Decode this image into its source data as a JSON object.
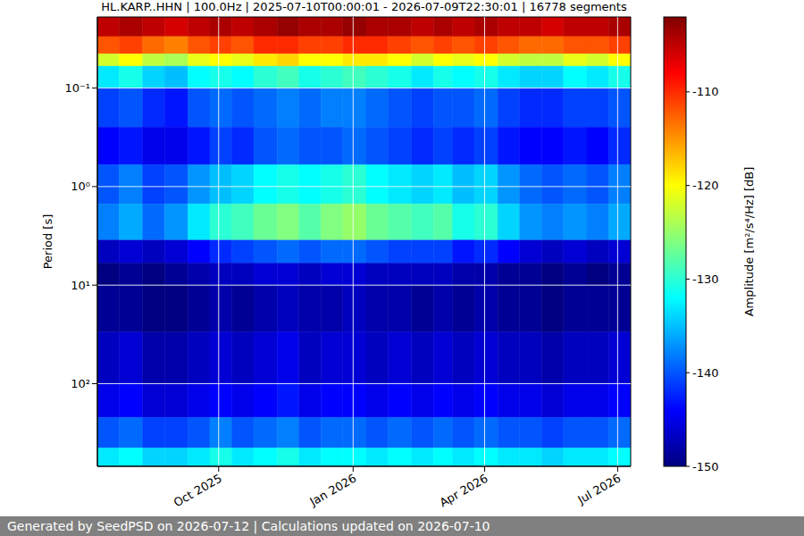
{
  "chart_data": {
    "type": "heatmap",
    "title": "HL.KARP..HHN | 100.0Hz | 2025-07-10T00:00:01 - 2026-07-09T22:30:01 | 16778 segments",
    "ylabel": "Period [s]",
    "footer": "Generated by SeedPSD on 2026-07-12 | Calculations updated on 2026-07-10",
    "log": "y",
    "grid": true,
    "color": "jet",
    "xlim": [
      "2025-07-10T00:00:01",
      "2026-07-09T22:30:01"
    ],
    "xticks": [
      {
        "value": "2025-10-01",
        "label": "Oct 2025"
      },
      {
        "value": "2026-01-01",
        "label": "Jan 2026"
      },
      {
        "value": "2026-04-01",
        "label": "Apr 2026"
      },
      {
        "value": "2026-07-01",
        "label": "Jul 2026"
      }
    ],
    "ylim": [
      0.019,
      690
    ],
    "yticks": [
      {
        "value": 0.1,
        "label": "10⁻¹"
      },
      {
        "value": 1,
        "label": "10⁰"
      },
      {
        "value": 10,
        "label": "10¹"
      },
      {
        "value": 100,
        "label": "10²"
      }
    ],
    "cells": {
      "x_edges": [
        "2025-07-10T00:00:01",
        "2025-07-25",
        "2025-08-10",
        "2025-08-25",
        "2025-09-10",
        "2025-09-25",
        "2025-10-10",
        "2025-10-25",
        "2025-11-10",
        "2025-11-25",
        "2025-12-10",
        "2025-12-25",
        "2026-01-10",
        "2026-01-25",
        "2026-02-10",
        "2026-02-25",
        "2026-03-10",
        "2026-03-25",
        "2026-04-10",
        "2026-04-25",
        "2026-05-10",
        "2026-05-25",
        "2026-06-10",
        "2026-06-25",
        "2026-07-09T22:30:01"
      ],
      "y_edges": [
        0.019,
        0.03,
        0.045,
        0.06,
        0.1,
        0.25,
        0.6,
        1.5,
        3.5,
        6,
        10,
        30,
        100,
        220,
        450,
        690
      ],
      "values": [
        [
          -105,
          -104,
          -105,
          -106,
          -105,
          -104,
          -105,
          -104,
          -103,
          -104,
          -104,
          -103,
          -104,
          -104,
          -105,
          -104,
          -105,
          -104,
          -105,
          -105,
          -106,
          -105,
          -105,
          -104
        ],
        [
          -112,
          -111,
          -113,
          -114,
          -112,
          -111,
          -112,
          -110,
          -110,
          -111,
          -111,
          -110,
          -110,
          -111,
          -112,
          -111,
          -112,
          -111,
          -112,
          -113,
          -113,
          -112,
          -112,
          -111
        ],
        [
          -122,
          -120,
          -123,
          -124,
          -121,
          -120,
          -121,
          -119,
          -118,
          -120,
          -120,
          -119,
          -119,
          -120,
          -122,
          -120,
          -121,
          -120,
          -122,
          -123,
          -123,
          -121,
          -122,
          -120
        ],
        [
          -133,
          -131,
          -134,
          -135,
          -132,
          -131,
          -132,
          -130,
          -129,
          -131,
          -130,
          -129,
          -130,
          -131,
          -133,
          -131,
          -132,
          -131,
          -133,
          -134,
          -134,
          -132,
          -133,
          -131
        ],
        [
          -141,
          -140,
          -142,
          -143,
          -140,
          -139,
          -140,
          -139,
          -138,
          -139,
          -138,
          -138,
          -139,
          -140,
          -141,
          -140,
          -140,
          -139,
          -141,
          -142,
          -142,
          -141,
          -141,
          -140
        ],
        [
          -144,
          -143,
          -145,
          -145,
          -143,
          -141,
          -142,
          -140,
          -139,
          -140,
          -140,
          -139,
          -140,
          -141,
          -142,
          -141,
          -142,
          -141,
          -143,
          -144,
          -144,
          -143,
          -144,
          -142
        ],
        [
          -140,
          -138,
          -141,
          -140,
          -137,
          -135,
          -134,
          -132,
          -131,
          -132,
          -131,
          -130,
          -132,
          -133,
          -134,
          -133,
          -135,
          -134,
          -137,
          -139,
          -140,
          -139,
          -140,
          -138
        ],
        [
          -138,
          -136,
          -139,
          -137,
          -133,
          -130,
          -129,
          -127,
          -126,
          -128,
          -126,
          -125,
          -127,
          -128,
          -129,
          -128,
          -131,
          -130,
          -134,
          -137,
          -138,
          -137,
          -138,
          -136
        ],
        [
          -147,
          -146,
          -147,
          -146,
          -144,
          -142,
          -141,
          -140,
          -139,
          -140,
          -139,
          -139,
          -140,
          -141,
          -141,
          -141,
          -143,
          -142,
          -144,
          -146,
          -147,
          -146,
          -147,
          -146
        ],
        [
          -150,
          -149,
          -150,
          -149,
          -148,
          -147,
          -147,
          -146,
          -146,
          -147,
          -146,
          -146,
          -147,
          -147,
          -147,
          -147,
          -148,
          -148,
          -149,
          -149,
          -150,
          -149,
          -150,
          -149
        ],
        [
          -149,
          -149,
          -150,
          -150,
          -149,
          -148,
          -149,
          -148,
          -147,
          -148,
          -148,
          -147,
          -148,
          -148,
          -149,
          -148,
          -149,
          -148,
          -149,
          -149,
          -150,
          -149,
          -149,
          -149
        ],
        [
          -147,
          -146,
          -148,
          -148,
          -147,
          -146,
          -147,
          -146,
          -145,
          -147,
          -146,
          -146,
          -147,
          -146,
          -147,
          -146,
          -147,
          -146,
          -147,
          -147,
          -148,
          -147,
          -147,
          -146
        ],
        [
          -145,
          -144,
          -146,
          -146,
          -145,
          -144,
          -145,
          -144,
          -143,
          -145,
          -144,
          -144,
          -145,
          -144,
          -145,
          -144,
          -145,
          -144,
          -145,
          -145,
          -146,
          -145,
          -145,
          -144
        ],
        [
          -140,
          -139,
          -141,
          -141,
          -140,
          -138,
          -140,
          -139,
          -138,
          -140,
          -139,
          -139,
          -140,
          -139,
          -140,
          -139,
          -140,
          -139,
          -140,
          -140,
          -141,
          -140,
          -140,
          -139
        ],
        [
          -133,
          -132,
          -134,
          -134,
          -133,
          -131,
          -133,
          -132,
          -131,
          -133,
          -132,
          -132,
          -133,
          -132,
          -133,
          -132,
          -133,
          -132,
          -133,
          -133,
          -134,
          -133,
          -133,
          -132
        ]
      ]
    },
    "colorbar": {
      "label": "Amplitude [m²/s⁴/Hz] [dB]",
      "range": [
        -150,
        -102
      ],
      "ticks": [
        -150,
        -140,
        -130,
        -120,
        -110
      ]
    }
  }
}
